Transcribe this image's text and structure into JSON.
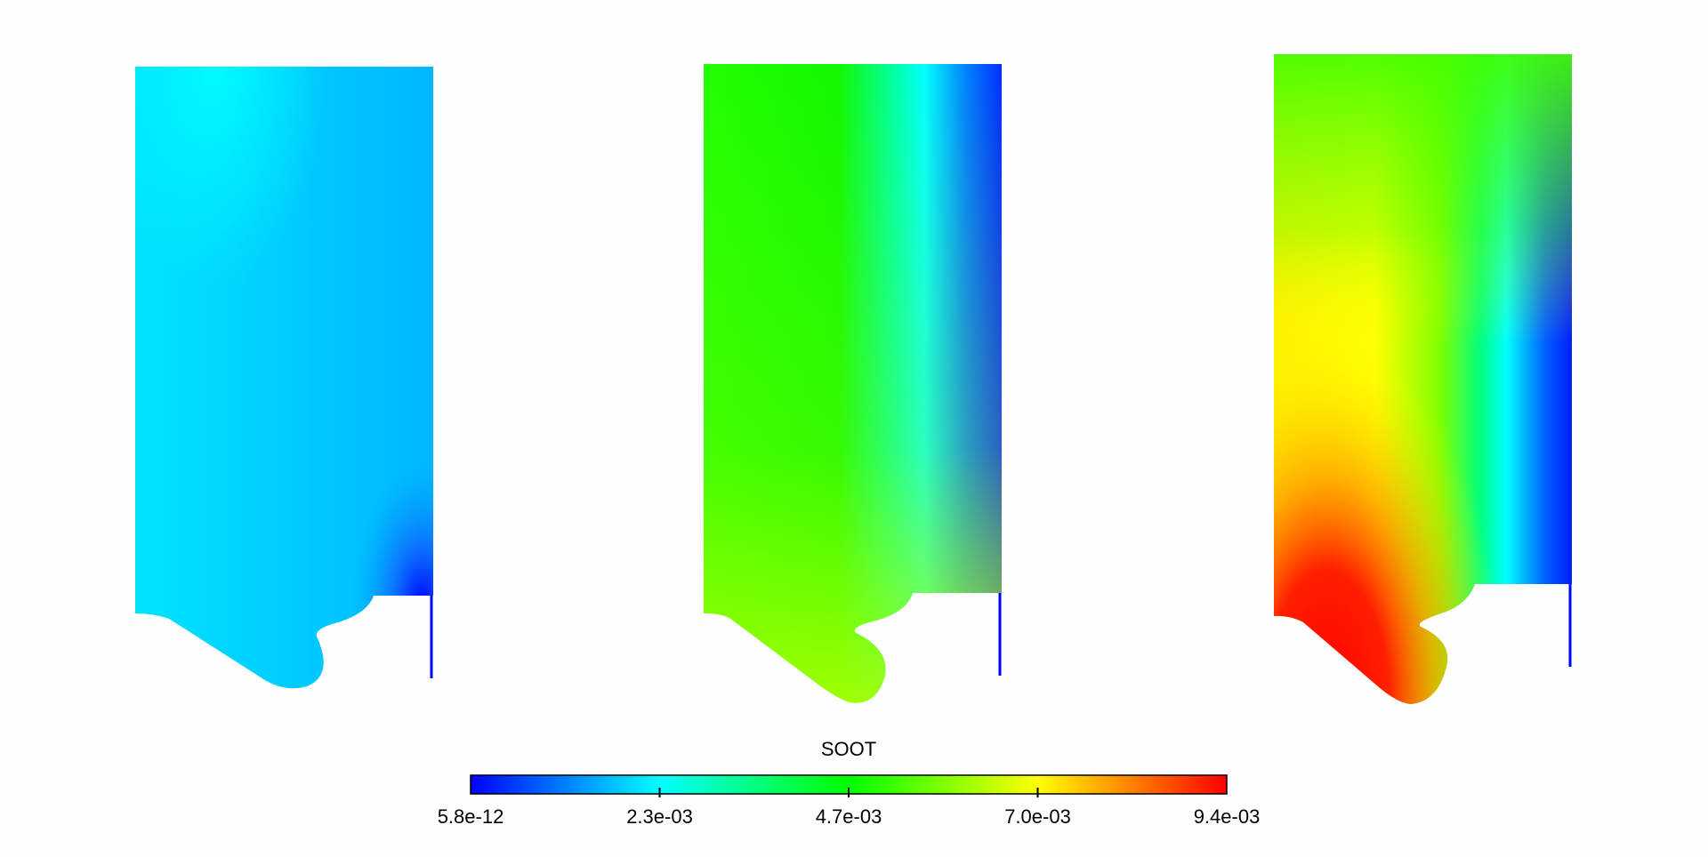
{
  "figure": {
    "colormap": [
      "#0000ff",
      "#00ffff",
      "#00ff00",
      "#ffff00",
      "#ff0000"
    ],
    "panels": [
      {
        "id": "case-1",
        "level": "low"
      },
      {
        "id": "case-2",
        "level": "medium"
      },
      {
        "id": "case-3",
        "level": "high"
      }
    ]
  },
  "colorbar": {
    "title": "SOOT",
    "tick_labels": [
      "5.8e-12",
      "2.3e-03",
      "4.7e-03",
      "7.0e-03",
      "9.4e-03"
    ],
    "range": [
      5.8e-12,
      0.0094
    ],
    "orientation": "horizontal",
    "placement": "bottom-center"
  }
}
